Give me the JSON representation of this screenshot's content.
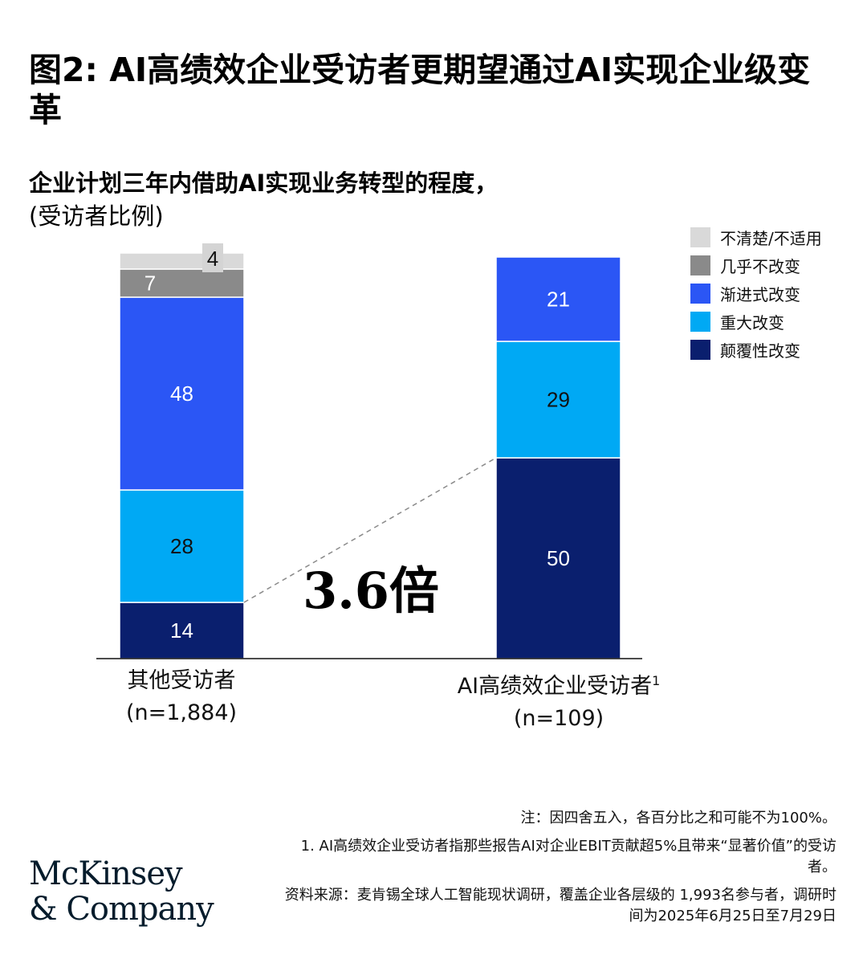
{
  "header": {
    "title": "图2: AI高绩效企业受访者更期望通过AI实现企业级变革",
    "subtitle": "企业计划三年内借助AI实现业务转型的程度，",
    "subtitle_unit": "(受访者比例)"
  },
  "chart_data": {
    "type": "bar",
    "stacked": true,
    "categories": [
      "其他受访者",
      "AI高绩效企业受访者"
    ],
    "category_footnotes": [
      "",
      "1"
    ],
    "category_samples": [
      "(n=1,884)",
      "(n=109)"
    ],
    "series": [
      {
        "name": "颠覆性改变",
        "color": "#0a1f6e",
        "values": [
          14,
          50
        ],
        "labels": [
          "14",
          "50"
        ]
      },
      {
        "name": "重大改变",
        "color": "#00a9f4",
        "values": [
          28,
          29
        ],
        "labels": [
          "28",
          "29"
        ]
      },
      {
        "name": "渐进式改变",
        "color": "#2b56f5",
        "values": [
          48,
          21
        ],
        "labels": [
          "48",
          "21"
        ]
      },
      {
        "name": "几乎不改变",
        "color": "#8a8a8a",
        "values": [
          7,
          0
        ],
        "labels": [
          "7",
          ""
        ]
      },
      {
        "name": "不清楚/不适用",
        "color": "#d9d9d9",
        "values": [
          4,
          0
        ],
        "labels": [
          "4",
          ""
        ]
      }
    ],
    "legend_order": [
      "不清楚/不适用",
      "几乎不改变",
      "渐进式改变",
      "重大改变",
      "颠覆性改变"
    ],
    "legend_position": "top-right",
    "ylim": [
      0,
      100
    ],
    "annotation": "3.6倍"
  },
  "notes": {
    "note": "注：因四舍五入，各百分比之和可能不为100%。",
    "footnote": "1. AI高绩效企业受访者指那些报告AI对企业EBIT贡献超5%且带来“显著价值”的受访者。",
    "source": "资料来源：麦肯锡全球人工智能现状调研，覆盖企业各层级的 1,993名参与者，调研时间为2025年6月25日至7月29日"
  },
  "logo": {
    "line1": "McKinsey",
    "line2": "& Company"
  }
}
